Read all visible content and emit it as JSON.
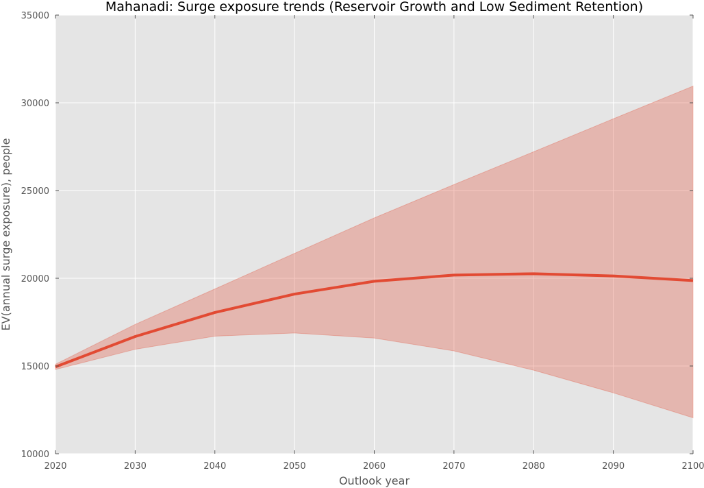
{
  "chart_data": {
    "type": "line",
    "title": "Mahanadi: Surge exposure trends (Reservoir Growth and Low Sediment Retention)",
    "xlabel": "Outlook year",
    "ylabel": "EV(annual surge exposure), people",
    "xlim": [
      2020,
      2100
    ],
    "ylim": [
      10000,
      35000
    ],
    "x_ticks": [
      "2020",
      "2030",
      "2040",
      "2050",
      "2060",
      "2070",
      "2080",
      "2090",
      "2100"
    ],
    "y_ticks": [
      "10000",
      "15000",
      "20000",
      "25000",
      "30000",
      "35000"
    ],
    "grid": true,
    "x": [
      2020,
      2030,
      2040,
      2050,
      2060,
      2070,
      2080,
      2090,
      2100
    ],
    "series": [
      {
        "values": [
          14950,
          16680,
          18050,
          19100,
          19830,
          20180,
          20260,
          20130,
          19870
        ],
        "lower": [
          14800,
          15950,
          16700,
          16880,
          16590,
          15860,
          14760,
          13470,
          12050
        ],
        "upper": [
          15100,
          17370,
          19390,
          21420,
          23440,
          25340,
          27210,
          29090,
          30950
        ]
      }
    ],
    "colors": {
      "line": "#E24A33",
      "band": "#E24A33",
      "background": "#E5E5E5",
      "grid": "#FFFFFF"
    }
  }
}
